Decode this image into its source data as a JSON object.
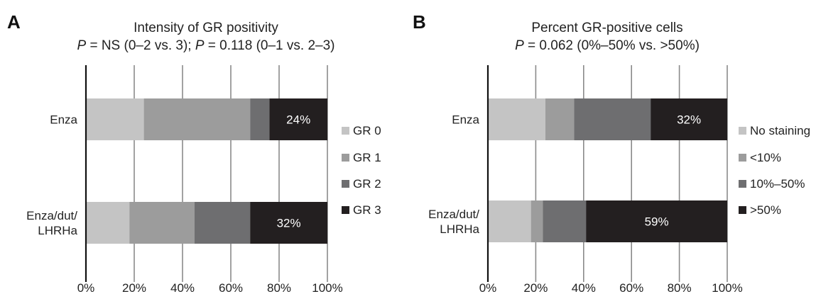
{
  "chart_data": [
    {
      "type": "bar",
      "orientation": "horizontal-stacked",
      "panel_label": "A",
      "title": "Intensity of GR positivity",
      "subtitle": {
        "p1": "P",
        "t1": " = NS (0–2 vs. 3); ",
        "p2": "P",
        "t2": " = 0.118 (0–1 vs. 2–3)"
      },
      "categories": [
        "Enza",
        "Enza/dut/\nLHRHa"
      ],
      "series": [
        {
          "name": "GR 0",
          "color": "#c4c4c4",
          "values": [
            24,
            18
          ]
        },
        {
          "name": "GR 1",
          "color": "#9c9c9c",
          "values": [
            44,
            27
          ]
        },
        {
          "name": "GR 2",
          "color": "#6e6e70",
          "values": [
            8,
            23
          ]
        },
        {
          "name": "GR 3",
          "color": "#231f20",
          "values": [
            24,
            32
          ]
        }
      ],
      "data_labels": [
        {
          "category_index": 0,
          "series_index": 3,
          "text": "24%"
        },
        {
          "category_index": 1,
          "series_index": 3,
          "text": "32%"
        }
      ],
      "xlim": [
        0,
        100
      ],
      "x_ticks": [
        "0%",
        "20%",
        "40%",
        "60%",
        "80%",
        "100%"
      ],
      "grid": true,
      "legend_position": "right"
    },
    {
      "type": "bar",
      "orientation": "horizontal-stacked",
      "panel_label": "B",
      "title": "Percent GR-positive cells",
      "subtitle": {
        "p1": "P",
        "t1": " = 0.062 (0%–50% vs. >50%)",
        "p2": "",
        "t2": ""
      },
      "categories": [
        "Enza",
        "Enza/dut/\nLHRHa"
      ],
      "series": [
        {
          "name": "No staining",
          "color": "#c4c4c4",
          "values": [
            24,
            18
          ]
        },
        {
          "name": "<10%",
          "color": "#9c9c9c",
          "values": [
            12,
            5
          ]
        },
        {
          "name": "10%–50%",
          "color": "#6e6e70",
          "values": [
            32,
            18
          ]
        },
        {
          "name": ">50%",
          "color": "#231f20",
          "values": [
            32,
            59
          ]
        }
      ],
      "data_labels": [
        {
          "category_index": 0,
          "series_index": 3,
          "text": "32%"
        },
        {
          "category_index": 1,
          "series_index": 3,
          "text": "59%"
        }
      ],
      "xlim": [
        0,
        100
      ],
      "x_ticks": [
        "0%",
        "20%",
        "40%",
        "60%",
        "80%",
        "100%"
      ],
      "grid": true,
      "legend_position": "right"
    }
  ]
}
